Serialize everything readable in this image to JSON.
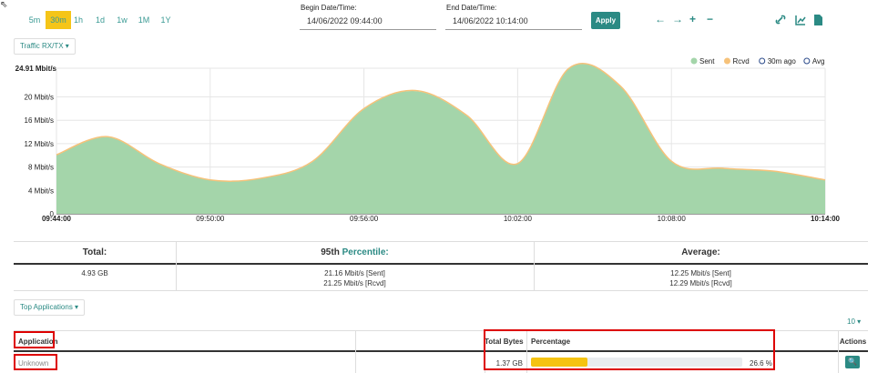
{
  "toolbar": {
    "ranges": [
      "5m",
      "30m",
      "1h",
      "1d",
      "1w",
      "1M",
      "1Y"
    ],
    "active_range": "30m",
    "begin_label": "Begin Date/Time:",
    "begin_value": "14/06/2022 09:44:00",
    "end_label": "End Date/Time:",
    "end_value": "14/06/2022 10:14:00",
    "apply": "Apply",
    "nav": [
      "←",
      "→",
      "+",
      "−"
    ]
  },
  "chart_selector": "Traffic RX/TX",
  "chart_data": {
    "type": "area",
    "x": [
      "09:44:00",
      "09:46:00",
      "09:48:00",
      "09:50:00",
      "09:52:00",
      "09:54:00",
      "09:56:00",
      "09:58:00",
      "10:00:00",
      "10:02:00",
      "10:04:00",
      "10:06:00",
      "10:08:00",
      "10:10:00",
      "10:12:00",
      "10:14:00"
    ],
    "series": [
      {
        "name": "Sent",
        "color": "#a4d5aa",
        "values": [
          10.1,
          13.1,
          8.6,
          5.8,
          6.1,
          8.9,
          17.9,
          21.0,
          16.8,
          8.6,
          24.9,
          21.8,
          9.0,
          7.8,
          7.3,
          5.8
        ]
      },
      {
        "name": "Rcvd",
        "color": "#f6c27a",
        "values": [
          10.1,
          13.2,
          8.6,
          5.8,
          6.1,
          9.0,
          18.0,
          21.1,
          16.9,
          8.6,
          24.9,
          21.9,
          9.0,
          7.8,
          7.3,
          5.8
        ]
      }
    ],
    "legend_extra": [
      "30m ago",
      "Avg"
    ],
    "xlim": [
      "09:44:00",
      "10:14:00"
    ],
    "xticks": [
      "09:44:00",
      "09:50:00",
      "09:56:00",
      "10:02:00",
      "10:08:00",
      "10:14:00"
    ],
    "ylim": [
      0,
      24.91
    ],
    "yticks": [
      0,
      {
        "value": 4,
        "label": "4 Mbit/s"
      },
      {
        "value": 8,
        "label": "8 Mbit/s"
      },
      {
        "value": 12,
        "label": "12 Mbit/s"
      },
      {
        "value": 16,
        "label": "16 Mbit/s"
      },
      {
        "value": 20,
        "label": "20 Mbit/s"
      },
      {
        "value": 24.91,
        "label": "24.91 Mbit/s"
      }
    ],
    "grid": true
  },
  "summary": {
    "total_header": "Total:",
    "percentile_header_prefix": "95th",
    "percentile_header": "Percentile:",
    "average_header": "Average:",
    "total": "4.93 GB",
    "percentile_sent": "21.16 Mbit/s [Sent]",
    "percentile_rcvd": "21.25 Mbit/s [Rcvd]",
    "average_sent": "12.25 Mbit/s [Sent]",
    "average_rcvd": "12.29 Mbit/s [Rcvd]"
  },
  "applications": {
    "selector": "Top Applications",
    "page_size": "10",
    "headers": [
      "Application",
      "Total Bytes",
      "Percentage",
      "Actions"
    ],
    "rows": [
      {
        "application": "Unknown",
        "total_bytes": "1.37 GB",
        "percentage": 26.6,
        "percentage_label": "26.6 %"
      }
    ]
  }
}
